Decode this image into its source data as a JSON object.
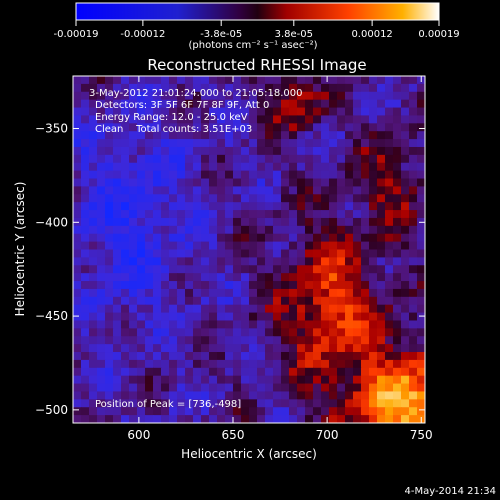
{
  "chart_data": {
    "type": "heatmap",
    "title": "Reconstructed RHESSI Image",
    "xlabel": "Heliocentric X (arcsec)",
    "ylabel": "Heliocentric Y (arcsec)",
    "xlim": [
      565,
      752
    ],
    "ylim": [
      -507,
      -322
    ],
    "x_ticks": [
      "600",
      "650",
      "700",
      "750"
    ],
    "x_tick_values": [
      600,
      650,
      700,
      750
    ],
    "y_ticks": [
      "-350",
      "-400",
      "-450",
      "-500"
    ],
    "y_tick_values": [
      -350,
      -400,
      -450,
      -500
    ],
    "colorbar": {
      "range": [
        -0.00019,
        0.00019
      ],
      "tick_labels": [
        "-0.00019",
        "-0.00012",
        "-3.8e-05",
        "3.8e-05",
        "0.00012",
        "0.00019"
      ],
      "tick_values": [
        -0.00019,
        -0.00012,
        -3.8e-05,
        3.8e-05,
        0.00012,
        0.00019
      ],
      "unit_label": "(photons cm⁻² s⁻¹ asec⁻²)"
    },
    "annotations": [
      "3-May-2012 21:01:24.000 to 21:05:18.000",
      "Detectors: 3F 5F 6F 7F 8F 9F, Att 0",
      "Energy Range: 12.0 - 25.0 keV",
      "Clean    Total counts: 3.51E+03"
    ],
    "peak_label": "Position of Peak = [736,-498]",
    "peak_position": [
      736,
      -498
    ],
    "colors": {
      "negative": "#1020ff",
      "neutral": "#400060",
      "mid": "#c00000",
      "high": "#ff8800",
      "peak": "#ffffff"
    }
  },
  "footer": {
    "timestamp": "4-May-2014 21:34"
  }
}
